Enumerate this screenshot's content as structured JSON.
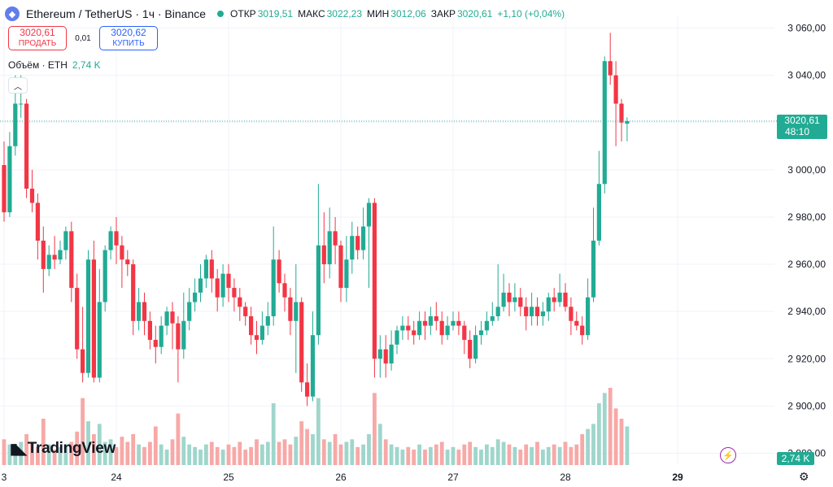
{
  "header": {
    "symbol": "Ethereum / TetherUS · 1ч · Binance",
    "logo_icon": "ethereum-icon",
    "open_label": "ОТКР",
    "open_value": "3019,51",
    "high_label": "МАКС",
    "high_value": "3022,23",
    "low_label": "МИН",
    "low_value": "3012,06",
    "close_label": "ЗАКР",
    "close_value": "3020,61",
    "change": "+1,10 (+0,04%)"
  },
  "trade": {
    "sell_price": "3020,61",
    "sell_label": "ПРОДАТЬ",
    "spread": "0,01",
    "buy_price": "3020,62",
    "buy_label": "КУПИТЬ"
  },
  "volume": {
    "label": "Объём · ETH",
    "value": "2,74 K"
  },
  "price_label": {
    "value": "3020,61",
    "countdown": "48:10"
  },
  "volume_label": "2,74 K",
  "brand": "TradingView",
  "colors": {
    "up": "#22ab94",
    "down": "#f23645",
    "up_volume": "#9fd6cc",
    "down_volume": "#f7a9a7",
    "grid": "#f0f3fa"
  },
  "chart_data": {
    "type": "candlestick",
    "title": "Ethereum / TetherUS · 1ч · Binance",
    "y_ticks": [
      "3 060,00",
      "3 040,00",
      "3 020,00",
      "3 000,00",
      "2 980,00",
      "2 960,00",
      "2 940,00",
      "2 920,00",
      "2 900,00",
      "2 880,00"
    ],
    "y_tick_values": [
      3060,
      3040,
      3020,
      3000,
      2980,
      2960,
      2940,
      2920,
      2900,
      2880
    ],
    "ylim": [
      2875,
      3065
    ],
    "x_ticks": [
      "3",
      "24",
      "25",
      "26",
      "27",
      "28",
      "29"
    ],
    "x_tick_index": [
      0,
      20,
      40,
      60,
      80,
      100,
      120
    ],
    "last_price": 3020.61,
    "grid": true,
    "candles": [
      [
        3002,
        2982,
        3012,
        2978
      ],
      [
        2982,
        3010,
        3016,
        2980
      ],
      [
        3010,
        3028,
        3040,
        3006
      ],
      [
        3028,
        3028,
        3040,
        3022
      ],
      [
        3028,
        2992,
        3030,
        2988
      ],
      [
        2992,
        2986,
        3000,
        2982
      ],
      [
        2986,
        2970,
        2990,
        2962
      ],
      [
        2970,
        2958,
        2976,
        2948
      ],
      [
        2958,
        2964,
        2968,
        2955
      ],
      [
        2964,
        2962,
        2972,
        2958
      ],
      [
        2962,
        2966,
        2970,
        2960
      ],
      [
        2966,
        2974,
        2976,
        2962
      ],
      [
        2974,
        2950,
        2978,
        2944
      ],
      [
        2950,
        2924,
        2956,
        2920
      ],
      [
        2924,
        2914,
        2942,
        2910
      ],
      [
        2914,
        2962,
        2966,
        2912
      ],
      [
        2962,
        2912,
        2970,
        2910
      ],
      [
        2912,
        2944,
        2958,
        2910
      ],
      [
        2944,
        2966,
        2968,
        2940
      ],
      [
        2966,
        2974,
        2976,
        2962
      ],
      [
        2974,
        2968,
        2980,
        2960
      ],
      [
        2968,
        2962,
        2972,
        2950
      ],
      [
        2962,
        2960,
        2966,
        2955
      ],
      [
        2960,
        2936,
        2962,
        2930
      ],
      [
        2936,
        2944,
        2950,
        2932
      ],
      [
        2944,
        2936,
        2948,
        2930
      ],
      [
        2936,
        2928,
        2940,
        2924
      ],
      [
        2928,
        2925,
        2934,
        2918
      ],
      [
        2925,
        2934,
        2938,
        2922
      ],
      [
        2934,
        2940,
        2942,
        2930
      ],
      [
        2940,
        2935,
        2944,
        2924
      ],
      [
        2935,
        2924,
        2938,
        2910
      ],
      [
        2924,
        2936,
        2948,
        2920
      ],
      [
        2936,
        2944,
        2950,
        2932
      ],
      [
        2944,
        2948,
        2954,
        2940
      ],
      [
        2948,
        2954,
        2960,
        2944
      ],
      [
        2954,
        2962,
        2964,
        2950
      ],
      [
        2962,
        2954,
        2966,
        2948
      ],
      [
        2954,
        2946,
        2958,
        2940
      ],
      [
        2946,
        2956,
        2960,
        2942
      ],
      [
        2956,
        2950,
        2960,
        2944
      ],
      [
        2950,
        2946,
        2954,
        2940
      ],
      [
        2946,
        2942,
        2950,
        2936
      ],
      [
        2942,
        2938,
        2944,
        2934
      ],
      [
        2938,
        2930,
        2942,
        2926
      ],
      [
        2930,
        2928,
        2936,
        2922
      ],
      [
        2928,
        2934,
        2940,
        2926
      ],
      [
        2934,
        2938,
        2944,
        2930
      ],
      [
        2938,
        2962,
        2976,
        2934
      ],
      [
        2962,
        2952,
        2966,
        2948
      ],
      [
        2952,
        2946,
        2956,
        2940
      ],
      [
        2946,
        2936,
        2950,
        2930
      ],
      [
        2936,
        2944,
        2960,
        2914
      ],
      [
        2944,
        2910,
        2946,
        2906
      ],
      [
        2910,
        2904,
        2918,
        2900
      ],
      [
        2904,
        2930,
        2940,
        2902
      ],
      [
        2930,
        2968,
        2994,
        2926
      ],
      [
        2968,
        2960,
        2982,
        2952
      ],
      [
        2960,
        2974,
        2984,
        2954
      ],
      [
        2974,
        2968,
        2980,
        2960
      ],
      [
        2968,
        2950,
        2970,
        2944
      ],
      [
        2950,
        2962,
        2972,
        2944
      ],
      [
        2962,
        2972,
        2978,
        2956
      ],
      [
        2972,
        2966,
        2976,
        2962
      ],
      [
        2966,
        2976,
        2984,
        2962
      ],
      [
        2976,
        2986,
        2988,
        2950
      ],
      [
        2986,
        2920,
        2988,
        2912
      ],
      [
        2920,
        2924,
        2930,
        2912
      ],
      [
        2924,
        2918,
        2930,
        2912
      ],
      [
        2918,
        2926,
        2932,
        2915
      ],
      [
        2926,
        2932,
        2934,
        2922
      ],
      [
        2932,
        2934,
        2938,
        2928
      ],
      [
        2934,
        2932,
        2938,
        2928
      ],
      [
        2932,
        2930,
        2936,
        2926
      ],
      [
        2930,
        2936,
        2940,
        2928
      ],
      [
        2936,
        2934,
        2940,
        2928
      ],
      [
        2934,
        2938,
        2942,
        2930
      ],
      [
        2938,
        2936,
        2944,
        2932
      ],
      [
        2936,
        2930,
        2940,
        2926
      ],
      [
        2930,
        2934,
        2938,
        2928
      ],
      [
        2934,
        2936,
        2940,
        2932
      ],
      [
        2936,
        2934,
        2940,
        2930
      ],
      [
        2934,
        2928,
        2936,
        2922
      ],
      [
        2928,
        2920,
        2932,
        2916
      ],
      [
        2920,
        2930,
        2934,
        2918
      ],
      [
        2930,
        2932,
        2936,
        2926
      ],
      [
        2932,
        2936,
        2940,
        2930
      ],
      [
        2936,
        2938,
        2944,
        2934
      ],
      [
        2938,
        2942,
        2960,
        2936
      ],
      [
        2942,
        2948,
        2956,
        2940
      ],
      [
        2948,
        2944,
        2952,
        2938
      ],
      [
        2944,
        2946,
        2952,
        2940
      ],
      [
        2946,
        2942,
        2950,
        2938
      ],
      [
        2942,
        2938,
        2946,
        2932
      ],
      [
        2938,
        2942,
        2948,
        2934
      ],
      [
        2942,
        2938,
        2946,
        2934
      ],
      [
        2938,
        2940,
        2944,
        2934
      ],
      [
        2940,
        2946,
        2948,
        2936
      ],
      [
        2946,
        2944,
        2950,
        2940
      ],
      [
        2944,
        2948,
        2956,
        2942
      ],
      [
        2948,
        2942,
        2952,
        2940
      ],
      [
        2942,
        2936,
        2946,
        2930
      ],
      [
        2936,
        2934,
        2940,
        2932
      ],
      [
        2934,
        2930,
        2938,
        2926
      ],
      [
        2930,
        2946,
        2954,
        2928
      ],
      [
        2946,
        2970,
        2984,
        2944
      ],
      [
        2970,
        2994,
        3008,
        2968
      ],
      [
        2994,
        3046,
        3048,
        2990
      ],
      [
        3046,
        3040,
        3058,
        3036
      ],
      [
        3040,
        3028,
        3046,
        3010
      ],
      [
        3028,
        3020,
        3030,
        3012
      ],
      [
        3019.51,
        3020.61,
        3022.23,
        3012.06
      ]
    ],
    "volumes": [
      1.0,
      0.8,
      0.6,
      0.9,
      1.2,
      0.9,
      0.7,
      1.8,
      0.8,
      0.6,
      0.7,
      0.8,
      0.9,
      1.3,
      2.6,
      1.7,
      1.2,
      1.6,
      0.9,
      1.0,
      0.7,
      1.1,
      0.9,
      1.2,
      0.8,
      0.7,
      0.9,
      1.5,
      0.8,
      0.6,
      1.0,
      2.0,
      1.1,
      0.8,
      0.7,
      0.6,
      0.8,
      0.9,
      0.7,
      0.6,
      0.8,
      0.7,
      0.9,
      0.6,
      0.7,
      1.0,
      0.8,
      0.9,
      2.4,
      0.9,
      1.0,
      0.8,
      1.1,
      1.7,
      1.4,
      1.2,
      2.6,
      1.0,
      0.9,
      1.2,
      0.8,
      0.9,
      1.0,
      0.7,
      0.8,
      1.2,
      2.8,
      1.6,
      1.0,
      0.8,
      0.7,
      0.6,
      0.7,
      0.6,
      0.8,
      0.6,
      0.7,
      0.8,
      0.9,
      0.6,
      0.7,
      0.6,
      0.8,
      0.9,
      0.7,
      0.6,
      0.8,
      0.7,
      1.0,
      0.9,
      0.8,
      0.7,
      0.6,
      0.8,
      0.7,
      0.9,
      0.6,
      0.7,
      0.8,
      0.7,
      0.9,
      0.7,
      0.8,
      1.2,
      1.4,
      1.6,
      2.4,
      2.8,
      3.0,
      2.2,
      1.8,
      1.5
    ]
  }
}
